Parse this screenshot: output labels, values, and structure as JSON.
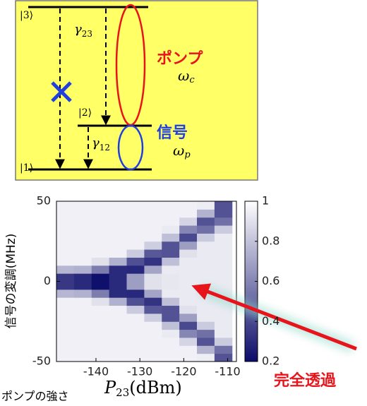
{
  "diagram": {
    "levels": [
      "|3⟩",
      "|2⟩",
      "|1⟩"
    ],
    "gamma23": {
      "main": "γ",
      "sub": "23"
    },
    "gamma12": {
      "main": "γ",
      "sub": "12"
    },
    "pump": "ポンプ",
    "pump_freq": {
      "main": "ω",
      "sub": "c"
    },
    "signal": "信号",
    "signal_freq": {
      "main": "ω",
      "sub": "p"
    }
  },
  "chart_data": {
    "type": "heatmap",
    "xlabel": {
      "main": "P",
      "sub": "23",
      "unit": "(dBm)"
    },
    "ylabel": "信号の変調(MHz)",
    "caption": "ポンプの強さ",
    "annotation": "完全透過",
    "x": [
      -147,
      -143,
      -139,
      -135,
      -131,
      -127,
      -123,
      -119,
      -115,
      -111
    ],
    "y": [
      -47.5,
      -42.5,
      -37.5,
      -32.5,
      -27.5,
      -22.5,
      -17.5,
      -12.5,
      -7.5,
      -2.5,
      2.5,
      7.5,
      12.5,
      17.5,
      22.5,
      27.5,
      32.5,
      37.5,
      42.5,
      47.5
    ],
    "z": [
      [
        0.95,
        0.95,
        0.95,
        0.95,
        0.95,
        0.95,
        0.95,
        0.95,
        0.76,
        0.34,
        0.34,
        0.76,
        0.95,
        0.95,
        0.95,
        0.95,
        0.95,
        0.95,
        0.95,
        0.95
      ],
      [
        0.95,
        0.95,
        0.95,
        0.95,
        0.95,
        0.95,
        0.95,
        0.95,
        0.74,
        0.3,
        0.3,
        0.74,
        0.95,
        0.95,
        0.95,
        0.95,
        0.95,
        0.95,
        0.95,
        0.95
      ],
      [
        0.95,
        0.95,
        0.95,
        0.95,
        0.95,
        0.95,
        0.95,
        0.9,
        0.57,
        0.21,
        0.21,
        0.57,
        0.9,
        0.95,
        0.95,
        0.95,
        0.95,
        0.95,
        0.95,
        0.95
      ],
      [
        0.95,
        0.95,
        0.95,
        0.95,
        0.95,
        0.95,
        0.95,
        0.74,
        0.3,
        0.3,
        0.3,
        0.3,
        0.74,
        0.95,
        0.95,
        0.95,
        0.95,
        0.95,
        0.95,
        0.95
      ],
      [
        0.95,
        0.95,
        0.95,
        0.95,
        0.95,
        0.95,
        0.83,
        0.42,
        0.29,
        0.68,
        0.68,
        0.29,
        0.42,
        0.83,
        0.95,
        0.95,
        0.95,
        0.95,
        0.95,
        0.95
      ],
      [
        0.95,
        0.95,
        0.95,
        0.95,
        0.95,
        0.84,
        0.45,
        0.33,
        0.7,
        0.9,
        0.9,
        0.7,
        0.33,
        0.45,
        0.84,
        0.95,
        0.95,
        0.95,
        0.95,
        0.95
      ],
      [
        0.95,
        0.95,
        0.95,
        0.93,
        0.79,
        0.43,
        0.43,
        0.79,
        0.93,
        0.92,
        0.92,
        0.93,
        0.79,
        0.43,
        0.43,
        0.79,
        0.93,
        0.95,
        0.95,
        0.95
      ],
      [
        0.95,
        0.95,
        0.86,
        0.6,
        0.4,
        0.68,
        0.9,
        0.93,
        0.93,
        0.93,
        0.93,
        0.93,
        0.93,
        0.9,
        0.68,
        0.4,
        0.6,
        0.86,
        0.95,
        0.95
      ],
      [
        0.94,
        0.75,
        0.43,
        0.53,
        0.83,
        0.93,
        0.93,
        0.93,
        0.93,
        0.93,
        0.93,
        0.93,
        0.93,
        0.93,
        0.93,
        0.83,
        0.53,
        0.43,
        0.75,
        0.94
      ],
      [
        0.43,
        0.53,
        0.83,
        0.93,
        0.93,
        0.93,
        0.93,
        0.93,
        0.93,
        0.93,
        0.93,
        0.93,
        0.93,
        0.93,
        0.93,
        0.93,
        0.83,
        0.53,
        0.43,
        0.43
      ]
    ],
    "xstep": 4,
    "ystep": 5,
    "xlim": [
      -149,
      -108
    ],
    "ylim": [
      -50,
      50
    ],
    "xticks": [
      -140,
      -130,
      -120,
      -110
    ],
    "yticks": [
      -50,
      0,
      50
    ],
    "zlim": [
      0.2,
      1
    ],
    "zticks": [
      0.2,
      0.4,
      0.6,
      0.8,
      1
    ],
    "colormap": [
      "#0c0c6a",
      "#ffffff"
    ]
  }
}
